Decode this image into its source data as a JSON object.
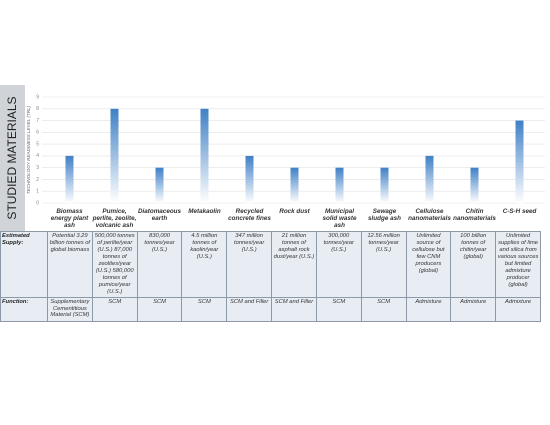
{
  "side_label": "STUDIED MATERIALS",
  "chart_data": {
    "type": "bar",
    "ylabel": "TECHNOLOGY READINESS LEVEL (TRL)",
    "categories": [
      "Biomass energy plant ash",
      "Pumice, perlite, zeolite, volcanic ash",
      "Diatomaceous earth",
      "Metakaolin",
      "Recycled concrete fines",
      "Rock dust",
      "Municipal solid waste ash",
      "Sewage sludge ash",
      "Cellulose nanomaterials",
      "Chitin nanomaterials",
      "C-S-H seed"
    ],
    "values": [
      4,
      8,
      3,
      8,
      4,
      3,
      3,
      3,
      4,
      3,
      7
    ],
    "color": "#3f80c6",
    "ylim": [
      0,
      9
    ],
    "yticks": [
      0,
      1,
      2,
      3,
      4,
      5,
      6,
      7,
      8,
      9
    ],
    "grid": true
  },
  "table": {
    "rows": [
      {
        "header": "Estimated Supply:",
        "cells": [
          "Potential 3.29 billion tonnes of global biomass",
          "500,000 tonnes of perlite/year (U.S.) 87,000 tonnes of zeolites/year (U.S.) 580,000 tonnes of pumice/year (U.S.)",
          "830,000 tonnes/year (U.S.)",
          "4.5 million tonnes of kaolin/year (U.S.)",
          "347 million tonnes/year (U.S.)",
          "21 million tonnes of asphalt rock dust/year (U.S.)",
          "300,000 tonnes/year (U.S.)",
          "12.56 million tonnes/year (U.S.)",
          "Unlimited source of cellulose but few CNM producers (global)",
          "100 billion tonnes of chitin/year (global)",
          "Unlimited supplies of lime and silica from various sources but limited admixture producer (global)"
        ]
      },
      {
        "header": "Function:",
        "cells": [
          "Supplementary Cementitious Material (SCM)",
          "SCM",
          "SCM",
          "SCM",
          "SCM and Filler",
          "SCM and Filler",
          "SCM",
          "SCM",
          "Admixture",
          "Admixture",
          "Admixture"
        ]
      }
    ]
  }
}
